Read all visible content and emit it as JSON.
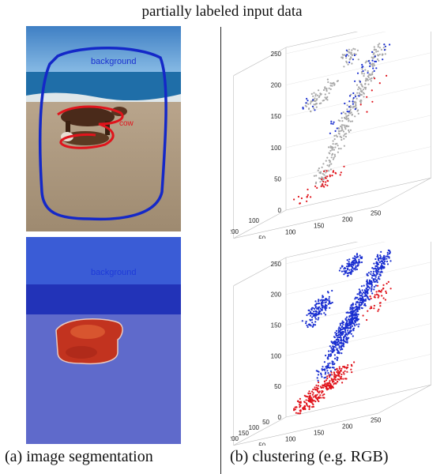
{
  "figure": {
    "title": "partially labeled input data",
    "caption_a": "(a) image segmentation",
    "caption_b": "(b) clustering (e.g. RGB)"
  },
  "panels": {
    "input_image": {
      "labels": {
        "background": "background",
        "cow": "cow"
      }
    },
    "segmented_image": {
      "labels": {
        "background": "background"
      }
    }
  },
  "colors": {
    "background_label": "#1a2fd0",
    "cow_label": "#e0141c",
    "unlabeled": "#a8a8a8"
  },
  "chart_data": [
    {
      "type": "scatter",
      "panel": "top",
      "z_ticks": [
        "0",
        "50",
        "100",
        "150",
        "200",
        "250"
      ],
      "x_ticks": [
        "50",
        "100",
        "150",
        "200",
        "250"
      ],
      "y_ticks": [
        "100",
        "200"
      ],
      "series": [
        {
          "color": "gray",
          "clusters": [
            {
              "from": [
                80,
                60,
                40
              ],
              "to": [
                240,
                200,
                250
              ],
              "n": 260
            },
            {
              "from": [
                60,
                60,
                160
              ],
              "to": [
                130,
                120,
                200
              ],
              "n": 70
            },
            {
              "from": [
                150,
                130,
                230
              ],
              "to": [
                180,
                160,
                245
              ],
              "n": 35
            }
          ]
        },
        {
          "color": "blue",
          "clusters": [
            {
              "from": [
                120,
                100,
                120
              ],
              "to": [
                240,
                200,
                250
              ],
              "n": 45
            },
            {
              "from": [
                60,
                60,
                160
              ],
              "to": [
                80,
                80,
                180
              ],
              "n": 8
            },
            {
              "from": [
                150,
                130,
                230
              ],
              "to": [
                180,
                160,
                245
              ],
              "n": 6
            }
          ]
        },
        {
          "color": "red",
          "clusters": [
            {
              "from": [
                30,
                20,
                10
              ],
              "to": [
                130,
                100,
                60
              ],
              "n": 40
            },
            {
              "from": [
                200,
                160,
                150
              ],
              "to": [
                240,
                200,
                200
              ],
              "n": 8
            }
          ]
        }
      ]
    },
    {
      "type": "scatter",
      "panel": "bottom",
      "z_ticks": [
        "0",
        "50",
        "100",
        "150",
        "200",
        "250"
      ],
      "x_ticks": [
        "0",
        "50",
        "100",
        "150",
        "200",
        "250"
      ],
      "y_ticks": [
        "50",
        "100",
        "150",
        "200",
        "250"
      ],
      "series": [
        {
          "color": "blue",
          "clusters": [
            {
              "from": [
                120,
                100,
                100
              ],
              "to": [
                250,
                210,
                250
              ],
              "n": 520
            },
            {
              "from": [
                60,
                60,
                150
              ],
              "to": [
                110,
                100,
                190
              ],
              "n": 140
            },
            {
              "from": [
                150,
                130,
                230
              ],
              "to": [
                185,
                160,
                248
              ],
              "n": 110
            },
            {
              "from": [
                90,
                70,
                60
              ],
              "to": [
                170,
                140,
                150
              ],
              "n": 140
            }
          ]
        },
        {
          "color": "red",
          "clusters": [
            {
              "from": [
                30,
                20,
                10
              ],
              "to": [
                150,
                120,
                70
              ],
              "n": 260
            },
            {
              "from": [
                200,
                160,
                150
              ],
              "to": [
                250,
                210,
                200
              ],
              "n": 40
            }
          ]
        }
      ]
    }
  ]
}
